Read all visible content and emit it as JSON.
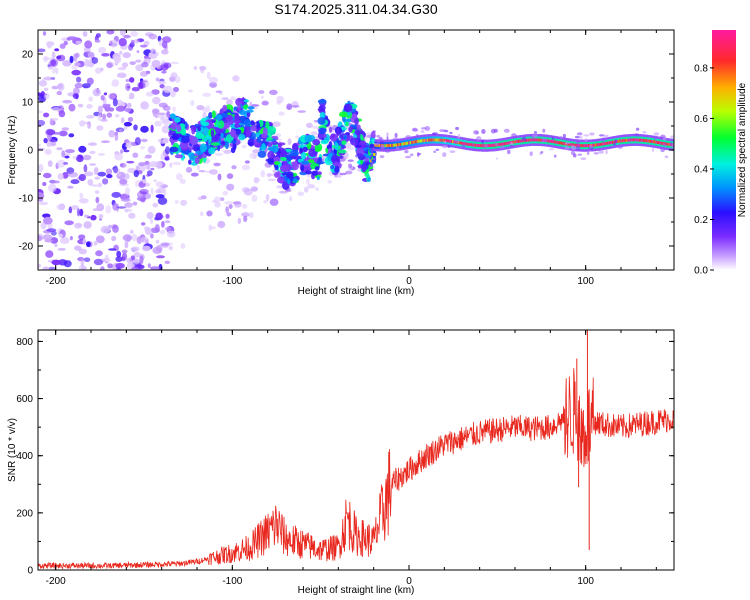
{
  "title": "S174.2025.311.04.34.G30",
  "top_panel": {
    "chart_data": {
      "type": "heatmap",
      "title": "S174.2025.311.04.34.G30",
      "xlabel": "Height of straight line (km)",
      "ylabel": "Frequency (Hz)",
      "xlim": [
        -210,
        150
      ],
      "ylim": [
        -25,
        25
      ],
      "x_ticks": [
        "-200",
        "-100",
        "0",
        "100"
      ],
      "y_ticks": [
        "-20",
        "-10",
        "0",
        "10",
        "20"
      ],
      "colorbar": {
        "label": "Normalized spectral amplitude",
        "range": [
          0.0,
          0.95
        ],
        "ticks": [
          "0.0",
          "0.2",
          "0.4",
          "0.6",
          "0.8"
        ],
        "colormap": [
          "#ffffff",
          "#9f4bff",
          "#3a00ff",
          "#00a0ff",
          "#00ffd0",
          "#00ff20",
          "#d8ff00",
          "#ff9d00",
          "#ff1e3c",
          "#ff20b0"
        ]
      },
      "features": [
        {
          "name": "noise cloud",
          "x_range": [
            -210,
            -135
          ],
          "y_range": [
            -25,
            25
          ],
          "amplitude": 0.1
        },
        {
          "name": "scattered carrier",
          "x_range": [
            -135,
            -20
          ],
          "y_range": [
            -12,
            12
          ],
          "amplitude": 0.2
        },
        {
          "name": "stable carrier",
          "x_range": [
            -20,
            150
          ],
          "y_center": 1.5,
          "amplitude": 0.75
        }
      ]
    }
  },
  "bottom_panel": {
    "chart_data": {
      "type": "line",
      "xlabel": "Height of straight line (km)",
      "ylabel": "SNR (10 * v/v)",
      "xlim": [
        -210,
        150
      ],
      "ylim": [
        0,
        840
      ],
      "x_ticks": [
        "-200",
        "-100",
        "0",
        "100"
      ],
      "y_ticks": [
        "0",
        "200",
        "400",
        "600",
        "800"
      ],
      "series": [
        {
          "name": "SNR",
          "color": "#e8281e",
          "x": [
            -210,
            -190,
            -170,
            -150,
            -130,
            -120,
            -110,
            -100,
            -90,
            -80,
            -75,
            -70,
            -60,
            -50,
            -40,
            -35,
            -30,
            -20,
            -15,
            -10,
            0,
            10,
            20,
            30,
            40,
            50,
            60,
            70,
            80,
            85,
            90,
            95,
            97,
            100,
            103,
            105,
            110,
            120,
            130,
            140,
            150
          ],
          "values": [
            15,
            15,
            15,
            18,
            22,
            30,
            45,
            60,
            80,
            130,
            160,
            110,
            90,
            70,
            80,
            180,
            120,
            100,
            200,
            300,
            350,
            400,
            440,
            460,
            480,
            490,
            500,
            495,
            500,
            520,
            540,
            560,
            460,
            500,
            510,
            520,
            510,
            500,
            510,
            520,
            530
          ]
        }
      ],
      "spikes": [
        {
          "x": 95,
          "y": 740
        },
        {
          "x": 96,
          "y": 290
        },
        {
          "x": 101,
          "y": 840
        },
        {
          "x": 102,
          "y": 70
        }
      ]
    }
  }
}
